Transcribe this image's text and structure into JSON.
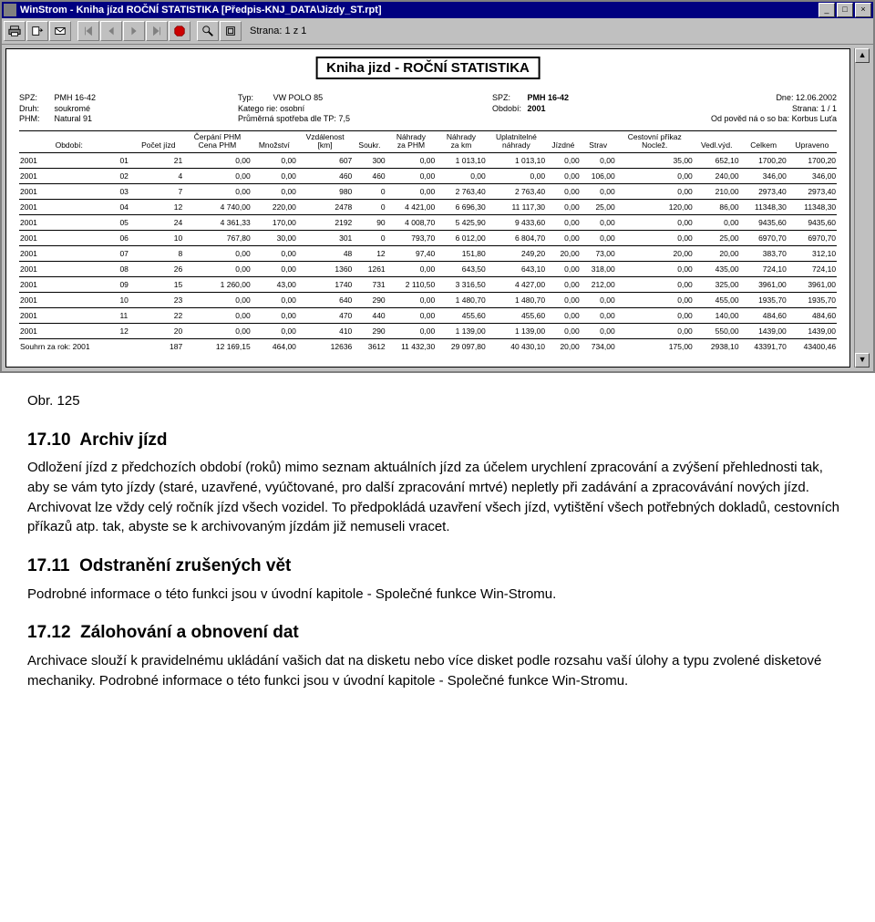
{
  "window": {
    "title": "WinStrom - Kniha jízd   ROČNÍ STATISTIKA [Předpis-KNJ_DATA\\Jizdy_ST.rpt]",
    "min": "_",
    "max": "□",
    "close": "×"
  },
  "toolbar": {
    "page_label": "Strana: 1 z 1"
  },
  "report": {
    "title": "Kniha jizd - ROČNÍ STATISTIKA",
    "header": {
      "spz_lbl": "SPZ:",
      "spz": "PMH 16-42",
      "druh_lbl": "Druh:",
      "druh": "soukromé",
      "phm_lbl": "PHM:",
      "phm": "Natural 91",
      "typ_lbl": "Typ:",
      "typ": "VW POLO 85",
      "kat_lbl": "Katego rie:",
      "kat": "osobní",
      "spot_lbl": "Průměrná spotřeba dle TP:",
      "spot": "7,5",
      "spz2_lbl": "SPZ:",
      "spz2": "PMH 16-42",
      "obd_lbl": "Období:",
      "obd": "2001",
      "dne_lbl": "Dne:",
      "dne": "12.06.2002",
      "str_lbl": "Strana:",
      "str": "1 / 1",
      "odp_lbl": "Od pověd ná o so ba:",
      "odp": "Korbus Luťa"
    },
    "columns": [
      "Období:",
      "",
      "Počet jízd",
      "Čerpání PHM\nCena PHM",
      "Množství",
      "Vzdálenost\n[km]",
      "Soukr.",
      "Náhrady\nza PHM",
      "Náhrady\nza km",
      "Uplatnitelné\nnáhrady",
      "Jízdné",
      "Strav",
      "Cestovní příkaz\nNoclež.",
      "Vedl.výd.",
      "Celkem",
      "Upraveno"
    ],
    "rows": [
      [
        "2001",
        "01",
        "21",
        "0,00",
        "0,00",
        "607",
        "300",
        "0,00",
        "1 013,10",
        "1 013,10",
        "0,00",
        "0,00",
        "35,00",
        "652,10",
        "1700,20",
        "1700,20"
      ],
      [
        "2001",
        "02",
        "4",
        "0,00",
        "0,00",
        "460",
        "460",
        "0,00",
        "0,00",
        "0,00",
        "0,00",
        "106,00",
        "0,00",
        "240,00",
        "346,00",
        "346,00"
      ],
      [
        "2001",
        "03",
        "7",
        "0,00",
        "0,00",
        "980",
        "0",
        "0,00",
        "2 763,40",
        "2 763,40",
        "0,00",
        "0,00",
        "0,00",
        "210,00",
        "2973,40",
        "2973,40"
      ],
      [
        "2001",
        "04",
        "12",
        "4 740,00",
        "220,00",
        "2478",
        "0",
        "4 421,00",
        "6 696,30",
        "11 117,30",
        "0,00",
        "25,00",
        "120,00",
        "86,00",
        "11348,30",
        "11348,30"
      ],
      [
        "2001",
        "05",
        "24",
        "4 361,33",
        "170,00",
        "2192",
        "90",
        "4 008,70",
        "5 425,90",
        "9 433,60",
        "0,00",
        "0,00",
        "0,00",
        "0,00",
        "9435,60",
        "9435,60"
      ],
      [
        "2001",
        "06",
        "10",
        "767,80",
        "30,00",
        "301",
        "0",
        "793,70",
        "6 012,00",
        "6 804,70",
        "0,00",
        "0,00",
        "0,00",
        "25,00",
        "6970,70",
        "6970,70"
      ],
      [
        "2001",
        "07",
        "8",
        "0,00",
        "0,00",
        "48",
        "12",
        "97,40",
        "151,80",
        "249,20",
        "20,00",
        "73,00",
        "20,00",
        "20,00",
        "383,70",
        "312,10"
      ],
      [
        "2001",
        "08",
        "26",
        "0,00",
        "0,00",
        "1360",
        "1261",
        "0,00",
        "643,50",
        "643,10",
        "0,00",
        "318,00",
        "0,00",
        "435,00",
        "724,10",
        "724,10"
      ],
      [
        "2001",
        "09",
        "15",
        "1 260,00",
        "43,00",
        "1740",
        "731",
        "2 110,50",
        "3 316,50",
        "4 427,00",
        "0,00",
        "212,00",
        "0,00",
        "325,00",
        "3961,00",
        "3961,00"
      ],
      [
        "2001",
        "10",
        "23",
        "0,00",
        "0,00",
        "640",
        "290",
        "0,00",
        "1 480,70",
        "1 480,70",
        "0,00",
        "0,00",
        "0,00",
        "455,00",
        "1935,70",
        "1935,70"
      ],
      [
        "2001",
        "11",
        "22",
        "0,00",
        "0,00",
        "470",
        "440",
        "0,00",
        "455,60",
        "455,60",
        "0,00",
        "0,00",
        "0,00",
        "140,00",
        "484,60",
        "484,60"
      ],
      [
        "2001",
        "12",
        "20",
        "0,00",
        "0,00",
        "410",
        "290",
        "0,00",
        "1 139,00",
        "1 139,00",
        "0,00",
        "0,00",
        "0,00",
        "550,00",
        "1439,00",
        "1439,00"
      ]
    ],
    "sum_label": "Souhrn za rok:",
    "sum": [
      "2001",
      "",
      "187",
      "12 169,15",
      "464,00",
      "12636",
      "3612",
      "11 432,30",
      "29 097,80",
      "40 430,10",
      "20,00",
      "734,00",
      "175,00",
      "2938,10",
      "43391,70",
      "43400,46"
    ]
  },
  "doc": {
    "caption": "Obr. 125",
    "h1_num": "17.10",
    "h1": "Archiv jízd",
    "p1": "Odložení jízd z předchozích období (roků) mimo seznam aktuálních jízd za účelem urychlení zpracování a zvýšení přehlednosti tak, aby se vám tyto jízdy (staré, uzavřené, vyúčtované, pro další zpracování mrtvé) nepletly při zadávání a zpracovávání nových jízd. Archivovat lze vždy celý ročník jízd všech vozidel. To předpokládá uzavření všech jízd, vytištění všech potřebných dokladů, cestovních příkazů atp. tak, abyste se k archivovaným jízdám již nemuseli vracet.",
    "h2_num": "17.11",
    "h2": "Odstranění zrušených vět",
    "p2": "Podrobné informace o této funkci jsou v úvodní kapitole - Společné funkce Win-Stromu.",
    "h3_num": "17.12",
    "h3": "Zálohování a obnovení dat",
    "p3": "Archivace slouží k pravidelnému ukládání vašich dat na disketu nebo více disket podle rozsahu vaší úlohy a typu zvolené disketové mechaniky. Podrobné informace o této funkci jsou v úvodní kapitole - Společné funkce Win-Stromu."
  },
  "colors": {
    "titlebar_bg": "#000080",
    "win_bg": "#c0c0c0",
    "text": "#000000",
    "rule": "#000000"
  }
}
